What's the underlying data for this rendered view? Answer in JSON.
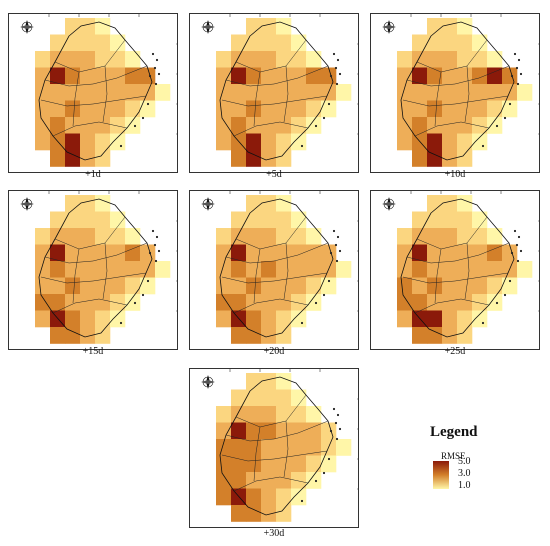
{
  "panels": [
    {
      "label": "+1d",
      "grid": [
        [
          0,
          0,
          2,
          2,
          1,
          0,
          0,
          0,
          0
        ],
        [
          0,
          2,
          2,
          2,
          2,
          1,
          0,
          0,
          0
        ],
        [
          2,
          3,
          3,
          3,
          2,
          2,
          1,
          0,
          0
        ],
        [
          3,
          5,
          4,
          3,
          3,
          3,
          4,
          4,
          0
        ],
        [
          3,
          3,
          3,
          3,
          3,
          3,
          3,
          3,
          1
        ],
        [
          3,
          3,
          4,
          3,
          3,
          3,
          2,
          1,
          0
        ],
        [
          3,
          4,
          3,
          3,
          3,
          2,
          1,
          0,
          0
        ],
        [
          3,
          4,
          5,
          3,
          2,
          1,
          0,
          0,
          0
        ],
        [
          0,
          4,
          5,
          3,
          2,
          0,
          0,
          0,
          0
        ]
      ]
    },
    {
      "label": "+5d",
      "grid": [
        [
          0,
          0,
          2,
          2,
          1,
          0,
          0,
          0,
          0
        ],
        [
          0,
          2,
          2,
          2,
          2,
          1,
          0,
          0,
          0
        ],
        [
          2,
          3,
          3,
          3,
          2,
          2,
          1,
          0,
          0
        ],
        [
          3,
          5,
          4,
          3,
          3,
          3,
          4,
          4,
          0
        ],
        [
          3,
          3,
          3,
          3,
          3,
          3,
          3,
          3,
          1
        ],
        [
          3,
          3,
          4,
          3,
          3,
          3,
          2,
          1,
          0
        ],
        [
          3,
          4,
          3,
          3,
          3,
          2,
          1,
          0,
          0
        ],
        [
          3,
          4,
          5,
          3,
          2,
          1,
          0,
          0,
          0
        ],
        [
          0,
          4,
          5,
          3,
          2,
          0,
          0,
          0,
          0
        ]
      ]
    },
    {
      "label": "+10d",
      "grid": [
        [
          0,
          0,
          2,
          2,
          1,
          0,
          0,
          0,
          0
        ],
        [
          0,
          2,
          2,
          2,
          2,
          1,
          0,
          0,
          0
        ],
        [
          2,
          3,
          3,
          3,
          2,
          2,
          1,
          0,
          0
        ],
        [
          3,
          5,
          4,
          3,
          3,
          4,
          5,
          4,
          0
        ],
        [
          3,
          3,
          3,
          3,
          3,
          3,
          3,
          3,
          1
        ],
        [
          3,
          3,
          4,
          3,
          3,
          3,
          2,
          1,
          0
        ],
        [
          3,
          4,
          3,
          3,
          3,
          2,
          1,
          0,
          0
        ],
        [
          3,
          4,
          5,
          3,
          2,
          1,
          0,
          0,
          0
        ],
        [
          0,
          4,
          5,
          3,
          2,
          0,
          0,
          0,
          0
        ]
      ]
    },
    {
      "label": "+15d",
      "grid": [
        [
          0,
          0,
          2,
          2,
          1,
          0,
          0,
          0,
          0
        ],
        [
          0,
          2,
          2,
          2,
          2,
          1,
          0,
          0,
          0
        ],
        [
          2,
          3,
          3,
          3,
          2,
          2,
          1,
          0,
          0
        ],
        [
          3,
          5,
          3,
          3,
          3,
          3,
          4,
          3,
          0
        ],
        [
          3,
          4,
          3,
          3,
          3,
          3,
          3,
          3,
          1
        ],
        [
          3,
          3,
          4,
          3,
          3,
          3,
          2,
          1,
          0
        ],
        [
          4,
          4,
          3,
          3,
          3,
          2,
          1,
          0,
          0
        ],
        [
          3,
          5,
          4,
          3,
          2,
          1,
          0,
          0,
          0
        ],
        [
          0,
          4,
          4,
          3,
          2,
          0,
          0,
          0,
          0
        ]
      ]
    },
    {
      "label": "+20d",
      "grid": [
        [
          0,
          0,
          2,
          2,
          1,
          0,
          0,
          0,
          0
        ],
        [
          0,
          2,
          2,
          2,
          2,
          1,
          0,
          0,
          0
        ],
        [
          2,
          3,
          3,
          3,
          2,
          2,
          1,
          0,
          0
        ],
        [
          3,
          5,
          3,
          3,
          3,
          3,
          3,
          3,
          0
        ],
        [
          3,
          4,
          3,
          4,
          3,
          3,
          3,
          3,
          1
        ],
        [
          3,
          3,
          4,
          3,
          3,
          3,
          2,
          1,
          0
        ],
        [
          4,
          4,
          3,
          3,
          3,
          2,
          1,
          0,
          0
        ],
        [
          3,
          5,
          4,
          3,
          2,
          1,
          0,
          0,
          0
        ],
        [
          0,
          4,
          4,
          3,
          2,
          0,
          0,
          0,
          0
        ]
      ]
    },
    {
      "label": "+25d",
      "grid": [
        [
          0,
          0,
          2,
          2,
          1,
          0,
          0,
          0,
          0
        ],
        [
          0,
          2,
          2,
          2,
          2,
          1,
          0,
          0,
          0
        ],
        [
          2,
          3,
          3,
          3,
          2,
          2,
          1,
          0,
          0
        ],
        [
          3,
          5,
          3,
          3,
          3,
          3,
          4,
          3,
          0
        ],
        [
          3,
          4,
          3,
          3,
          3,
          3,
          3,
          3,
          1
        ],
        [
          4,
          3,
          4,
          3,
          3,
          3,
          2,
          1,
          0
        ],
        [
          4,
          4,
          3,
          3,
          3,
          2,
          1,
          0,
          0
        ],
        [
          3,
          5,
          5,
          3,
          2,
          1,
          0,
          0,
          0
        ],
        [
          0,
          4,
          4,
          3,
          2,
          0,
          0,
          0,
          0
        ]
      ]
    },
    {
      "label": "+30d",
      "grid": [
        [
          0,
          0,
          2,
          2,
          1,
          0,
          0,
          0,
          0
        ],
        [
          0,
          2,
          2,
          2,
          2,
          1,
          0,
          0,
          0
        ],
        [
          2,
          3,
          3,
          3,
          2,
          2,
          1,
          0,
          0
        ],
        [
          3,
          5,
          4,
          4,
          3,
          3,
          3,
          2,
          0
        ],
        [
          4,
          4,
          4,
          3,
          3,
          3,
          3,
          2,
          1
        ],
        [
          4,
          4,
          4,
          3,
          3,
          3,
          2,
          1,
          0
        ],
        [
          4,
          4,
          3,
          3,
          3,
          2,
          1,
          0,
          0
        ],
        [
          4,
          5,
          4,
          3,
          2,
          1,
          0,
          0,
          0
        ],
        [
          0,
          4,
          4,
          3,
          2,
          0,
          0,
          0,
          0
        ]
      ]
    }
  ],
  "legend": {
    "title": "Legend",
    "subtitle": "RMSE",
    "values": [
      "5.0",
      "3.0",
      "1.0"
    ]
  },
  "colors": {
    "level1": "#fff6a8",
    "level2": "#fbd680",
    "level3": "#eeae58",
    "level4": "#d3802a",
    "level5": "#8b1a0a"
  }
}
